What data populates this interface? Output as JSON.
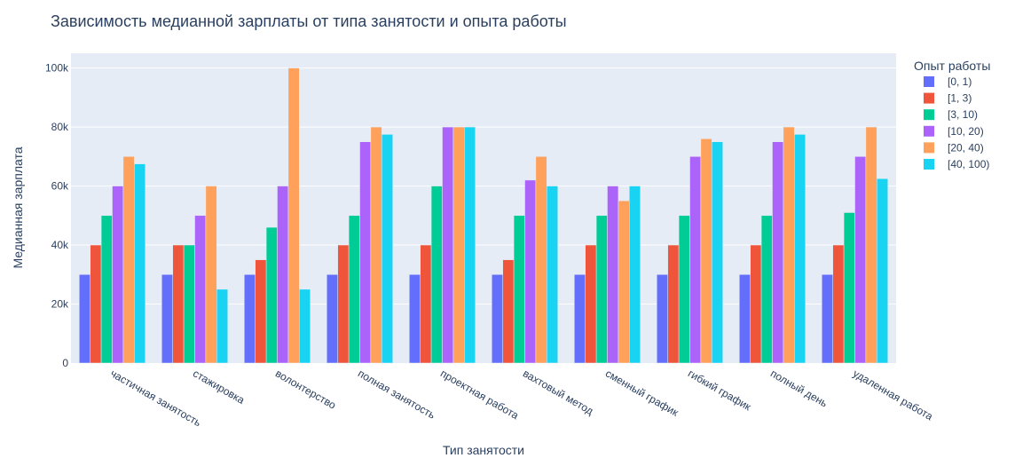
{
  "chart_data": {
    "type": "bar",
    "title": "Зависимость медианной зарплаты от типа занятости и опыта работы",
    "xlabel": "Тип занятости",
    "ylabel": "Медианная зарплата",
    "ylim": [
      0,
      105000
    ],
    "yticks": [
      0,
      20000,
      40000,
      60000,
      80000,
      100000
    ],
    "ytick_labels": [
      "0",
      "20k",
      "40k",
      "60k",
      "80k",
      "100k"
    ],
    "grid": true,
    "legend_title": "Опыт работы",
    "legend_position": "right",
    "categories": [
      "частичная занятость",
      "стажировка",
      "волонтерство",
      "полная занятость",
      "проектная работа",
      "вахтовый метод",
      "сменный график",
      "гибкий график",
      "полный день",
      "удаленная работа"
    ],
    "series": [
      {
        "name": "[0, 1)",
        "color": "#636efa",
        "values": [
          30000,
          30000,
          30000,
          30000,
          30000,
          30000,
          30000,
          30000,
          30000,
          30000
        ]
      },
      {
        "name": "[1, 3)",
        "color": "#ef553b",
        "values": [
          40000,
          40000,
          35000,
          40000,
          40000,
          35000,
          40000,
          40000,
          40000,
          40000
        ]
      },
      {
        "name": "[3, 10)",
        "color": "#00cc96",
        "values": [
          50000,
          40000,
          46000,
          50000,
          60000,
          50000,
          50000,
          50000,
          50000,
          51000
        ]
      },
      {
        "name": "[10, 20)",
        "color": "#ab63fa",
        "values": [
          60000,
          50000,
          60000,
          75000,
          80000,
          62000,
          60000,
          70000,
          75000,
          70000
        ]
      },
      {
        "name": "[20, 40)",
        "color": "#ffa15a",
        "values": [
          70000,
          60000,
          100000,
          80000,
          80000,
          70000,
          55000,
          76000,
          80000,
          80000
        ]
      },
      {
        "name": "[40, 100)",
        "color": "#19d3f3",
        "values": [
          67500,
          25000,
          25000,
          77500,
          80000,
          60000,
          60000,
          75000,
          77500,
          62500
        ]
      }
    ]
  }
}
